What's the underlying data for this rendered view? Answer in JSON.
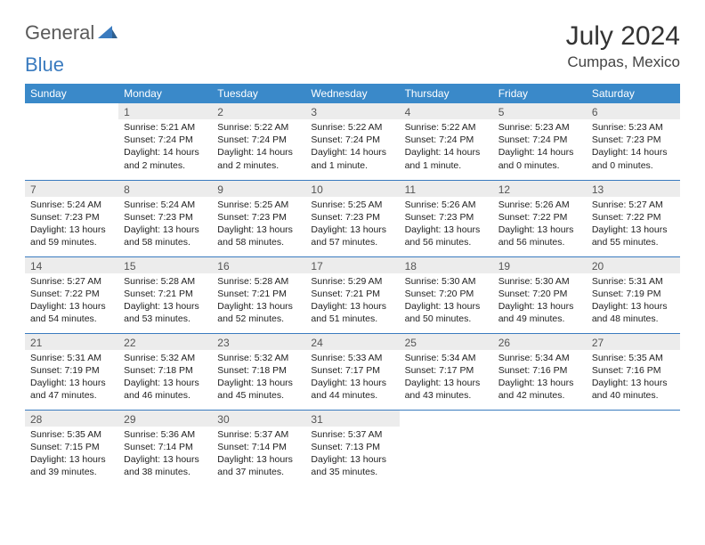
{
  "brand": {
    "part1": "General",
    "part2": "Blue"
  },
  "title": "July 2024",
  "location": "Cumpas, Mexico",
  "colors": {
    "header_bg": "#3a89c9",
    "header_text": "#ffffff",
    "daynum_bg": "#ececec",
    "rule": "#3a7bbf",
    "brand_gray": "#5a5a5a",
    "brand_blue": "#3a7bbf"
  },
  "weekdays": [
    "Sunday",
    "Monday",
    "Tuesday",
    "Wednesday",
    "Thursday",
    "Friday",
    "Saturday"
  ],
  "first_weekday_index": 1,
  "days": [
    {
      "n": 1,
      "sunrise": "5:21 AM",
      "sunset": "7:24 PM",
      "daylight": "14 hours and 2 minutes."
    },
    {
      "n": 2,
      "sunrise": "5:22 AM",
      "sunset": "7:24 PM",
      "daylight": "14 hours and 2 minutes."
    },
    {
      "n": 3,
      "sunrise": "5:22 AM",
      "sunset": "7:24 PM",
      "daylight": "14 hours and 1 minute."
    },
    {
      "n": 4,
      "sunrise": "5:22 AM",
      "sunset": "7:24 PM",
      "daylight": "14 hours and 1 minute."
    },
    {
      "n": 5,
      "sunrise": "5:23 AM",
      "sunset": "7:24 PM",
      "daylight": "14 hours and 0 minutes."
    },
    {
      "n": 6,
      "sunrise": "5:23 AM",
      "sunset": "7:23 PM",
      "daylight": "14 hours and 0 minutes."
    },
    {
      "n": 7,
      "sunrise": "5:24 AM",
      "sunset": "7:23 PM",
      "daylight": "13 hours and 59 minutes."
    },
    {
      "n": 8,
      "sunrise": "5:24 AM",
      "sunset": "7:23 PM",
      "daylight": "13 hours and 58 minutes."
    },
    {
      "n": 9,
      "sunrise": "5:25 AM",
      "sunset": "7:23 PM",
      "daylight": "13 hours and 58 minutes."
    },
    {
      "n": 10,
      "sunrise": "5:25 AM",
      "sunset": "7:23 PM",
      "daylight": "13 hours and 57 minutes."
    },
    {
      "n": 11,
      "sunrise": "5:26 AM",
      "sunset": "7:23 PM",
      "daylight": "13 hours and 56 minutes."
    },
    {
      "n": 12,
      "sunrise": "5:26 AM",
      "sunset": "7:22 PM",
      "daylight": "13 hours and 56 minutes."
    },
    {
      "n": 13,
      "sunrise": "5:27 AM",
      "sunset": "7:22 PM",
      "daylight": "13 hours and 55 minutes."
    },
    {
      "n": 14,
      "sunrise": "5:27 AM",
      "sunset": "7:22 PM",
      "daylight": "13 hours and 54 minutes."
    },
    {
      "n": 15,
      "sunrise": "5:28 AM",
      "sunset": "7:21 PM",
      "daylight": "13 hours and 53 minutes."
    },
    {
      "n": 16,
      "sunrise": "5:28 AM",
      "sunset": "7:21 PM",
      "daylight": "13 hours and 52 minutes."
    },
    {
      "n": 17,
      "sunrise": "5:29 AM",
      "sunset": "7:21 PM",
      "daylight": "13 hours and 51 minutes."
    },
    {
      "n": 18,
      "sunrise": "5:30 AM",
      "sunset": "7:20 PM",
      "daylight": "13 hours and 50 minutes."
    },
    {
      "n": 19,
      "sunrise": "5:30 AM",
      "sunset": "7:20 PM",
      "daylight": "13 hours and 49 minutes."
    },
    {
      "n": 20,
      "sunrise": "5:31 AM",
      "sunset": "7:19 PM",
      "daylight": "13 hours and 48 minutes."
    },
    {
      "n": 21,
      "sunrise": "5:31 AM",
      "sunset": "7:19 PM",
      "daylight": "13 hours and 47 minutes."
    },
    {
      "n": 22,
      "sunrise": "5:32 AM",
      "sunset": "7:18 PM",
      "daylight": "13 hours and 46 minutes."
    },
    {
      "n": 23,
      "sunrise": "5:32 AM",
      "sunset": "7:18 PM",
      "daylight": "13 hours and 45 minutes."
    },
    {
      "n": 24,
      "sunrise": "5:33 AM",
      "sunset": "7:17 PM",
      "daylight": "13 hours and 44 minutes."
    },
    {
      "n": 25,
      "sunrise": "5:34 AM",
      "sunset": "7:17 PM",
      "daylight": "13 hours and 43 minutes."
    },
    {
      "n": 26,
      "sunrise": "5:34 AM",
      "sunset": "7:16 PM",
      "daylight": "13 hours and 42 minutes."
    },
    {
      "n": 27,
      "sunrise": "5:35 AM",
      "sunset": "7:16 PM",
      "daylight": "13 hours and 40 minutes."
    },
    {
      "n": 28,
      "sunrise": "5:35 AM",
      "sunset": "7:15 PM",
      "daylight": "13 hours and 39 minutes."
    },
    {
      "n": 29,
      "sunrise": "5:36 AM",
      "sunset": "7:14 PM",
      "daylight": "13 hours and 38 minutes."
    },
    {
      "n": 30,
      "sunrise": "5:37 AM",
      "sunset": "7:14 PM",
      "daylight": "13 hours and 37 minutes."
    },
    {
      "n": 31,
      "sunrise": "5:37 AM",
      "sunset": "7:13 PM",
      "daylight": "13 hours and 35 minutes."
    }
  ],
  "labels": {
    "sunrise": "Sunrise:",
    "sunset": "Sunset:",
    "daylight": "Daylight:"
  }
}
